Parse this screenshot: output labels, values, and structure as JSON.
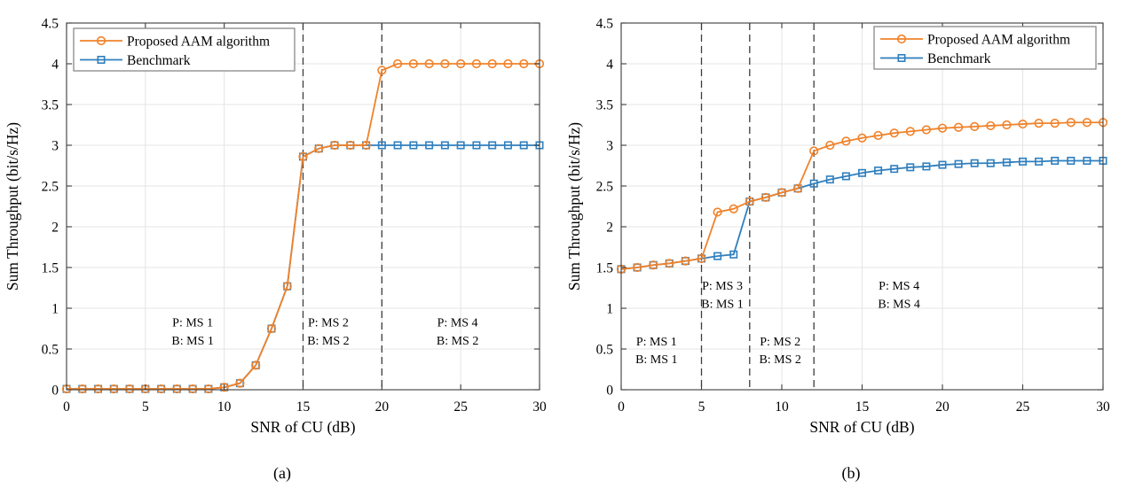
{
  "colors": {
    "proposed": "#F0822A",
    "benchmark": "#2F7FBE",
    "grid": "#E4E4E4",
    "axis": "#3C3C3C",
    "dashed": "#3C3C3C",
    "legend_border": "#7F7F7F",
    "text": "#000000"
  },
  "chart_data": [
    {
      "id": "a",
      "type": "line",
      "caption": "(a)",
      "xlabel": "SNR of CU (dB)",
      "ylabel": "Sum Throughput (bit/s/Hz)",
      "xlim": [
        0,
        30
      ],
      "ylim": [
        0,
        4.5
      ],
      "xticks": [
        0,
        5,
        10,
        15,
        20,
        25,
        30
      ],
      "yticks": [
        0,
        0.5,
        1,
        1.5,
        2,
        2.5,
        3,
        3.5,
        4,
        4.5
      ],
      "grid": true,
      "legend_position": "top-left",
      "x": [
        0,
        1,
        2,
        3,
        4,
        5,
        6,
        7,
        8,
        9,
        10,
        11,
        12,
        13,
        14,
        15,
        16,
        17,
        18,
        19,
        20,
        21,
        22,
        23,
        24,
        25,
        26,
        27,
        28,
        29,
        30
      ],
      "series": [
        {
          "name": "Proposed AAM algorithm",
          "marker": "circle",
          "color_key": "proposed",
          "values": [
            0.01,
            0.01,
            0.01,
            0.01,
            0.01,
            0.01,
            0.01,
            0.01,
            0.01,
            0.01,
            0.03,
            0.08,
            0.3,
            0.75,
            1.27,
            2.86,
            2.96,
            3.0,
            3.0,
            3.0,
            3.92,
            4.0,
            4.0,
            4.0,
            4.0,
            4.0,
            4.0,
            4.0,
            4.0,
            4.0,
            4.0
          ]
        },
        {
          "name": "Benchmark",
          "marker": "square",
          "color_key": "benchmark",
          "values": [
            0.01,
            0.01,
            0.01,
            0.01,
            0.01,
            0.01,
            0.01,
            0.01,
            0.01,
            0.01,
            0.03,
            0.08,
            0.3,
            0.75,
            1.27,
            2.86,
            2.96,
            3.0,
            3.0,
            3.0,
            3.0,
            3.0,
            3.0,
            3.0,
            3.0,
            3.0,
            3.0,
            3.0,
            3.0,
            3.0,
            3.0
          ]
        }
      ],
      "dashed_lines_x": [
        15,
        20
      ],
      "annotations": [
        {
          "x": 8.0,
          "y": 0.83,
          "lines": [
            "P: MS 1",
            "B: MS 1"
          ]
        },
        {
          "x": 16.6,
          "y": 0.83,
          "lines": [
            "P: MS 2",
            "B: MS 2"
          ]
        },
        {
          "x": 24.8,
          "y": 0.83,
          "lines": [
            "P: MS 4",
            "B: MS 2"
          ]
        }
      ]
    },
    {
      "id": "b",
      "type": "line",
      "caption": "(b)",
      "xlabel": "SNR of CU (dB)",
      "ylabel": "Sum Throughput (bit/s/Hz)",
      "xlim": [
        0,
        30
      ],
      "ylim": [
        0,
        4.5
      ],
      "xticks": [
        0,
        5,
        10,
        15,
        20,
        25,
        30
      ],
      "yticks": [
        0,
        0.5,
        1,
        1.5,
        2,
        2.5,
        3,
        3.5,
        4,
        4.5
      ],
      "grid": true,
      "legend_position": "top-right",
      "x": [
        0,
        1,
        2,
        3,
        4,
        5,
        6,
        7,
        8,
        9,
        10,
        11,
        12,
        13,
        14,
        15,
        16,
        17,
        18,
        19,
        20,
        21,
        22,
        23,
        24,
        25,
        26,
        27,
        28,
        29,
        30
      ],
      "series": [
        {
          "name": "Proposed AAM algorithm",
          "marker": "circle",
          "color_key": "proposed",
          "values": [
            1.48,
            1.5,
            1.53,
            1.55,
            1.58,
            1.61,
            2.18,
            2.22,
            2.31,
            2.36,
            2.42,
            2.47,
            2.93,
            3.0,
            3.05,
            3.09,
            3.12,
            3.15,
            3.17,
            3.19,
            3.21,
            3.22,
            3.23,
            3.24,
            3.25,
            3.26,
            3.27,
            3.27,
            3.28,
            3.28,
            3.28
          ]
        },
        {
          "name": "Benchmark",
          "marker": "square",
          "color_key": "benchmark",
          "values": [
            1.48,
            1.5,
            1.53,
            1.55,
            1.58,
            1.61,
            1.64,
            1.66,
            2.31,
            2.36,
            2.42,
            2.47,
            2.53,
            2.58,
            2.62,
            2.66,
            2.69,
            2.71,
            2.73,
            2.74,
            2.76,
            2.77,
            2.78,
            2.78,
            2.79,
            2.8,
            2.8,
            2.81,
            2.81,
            2.81,
            2.81
          ]
        }
      ],
      "dashed_lines_x": [
        5,
        8,
        12
      ],
      "annotations": [
        {
          "x": 2.2,
          "y": 0.6,
          "lines": [
            "P: MS 1",
            "B: MS 1"
          ]
        },
        {
          "x": 6.3,
          "y": 1.28,
          "lines": [
            "P: MS 3",
            "B: MS 1"
          ]
        },
        {
          "x": 9.9,
          "y": 0.6,
          "lines": [
            "P: MS 2",
            "B: MS 2"
          ]
        },
        {
          "x": 17.3,
          "y": 1.28,
          "lines": [
            "P: MS 4",
            "B: MS 4"
          ]
        }
      ]
    }
  ]
}
